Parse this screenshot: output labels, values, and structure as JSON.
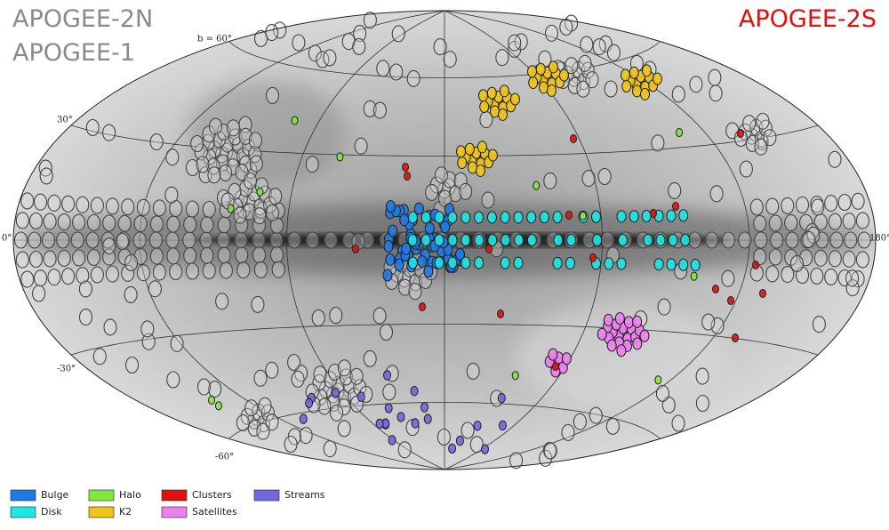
{
  "labels": {
    "north_2": "APOGEE-2N",
    "north_1": "APOGEE-1",
    "south": "APOGEE-2S"
  },
  "axis_labels": [
    "b = 60°",
    "30°",
    "0°",
    "-30°",
    "-60°",
    "180°"
  ],
  "legend": [
    {
      "label": "Bulge",
      "color": "#1f7ae6"
    },
    {
      "label": "Disk",
      "color": "#1ee6e6"
    },
    {
      "label": "Halo",
      "color": "#80e83a"
    },
    {
      "label": "K2",
      "color": "#f0c419"
    },
    {
      "label": "Clusters",
      "color": "#e01010"
    },
    {
      "label": "Satellites",
      "color": "#ee80ee"
    },
    {
      "label": "Streams",
      "color": "#7068e0"
    }
  ]
}
